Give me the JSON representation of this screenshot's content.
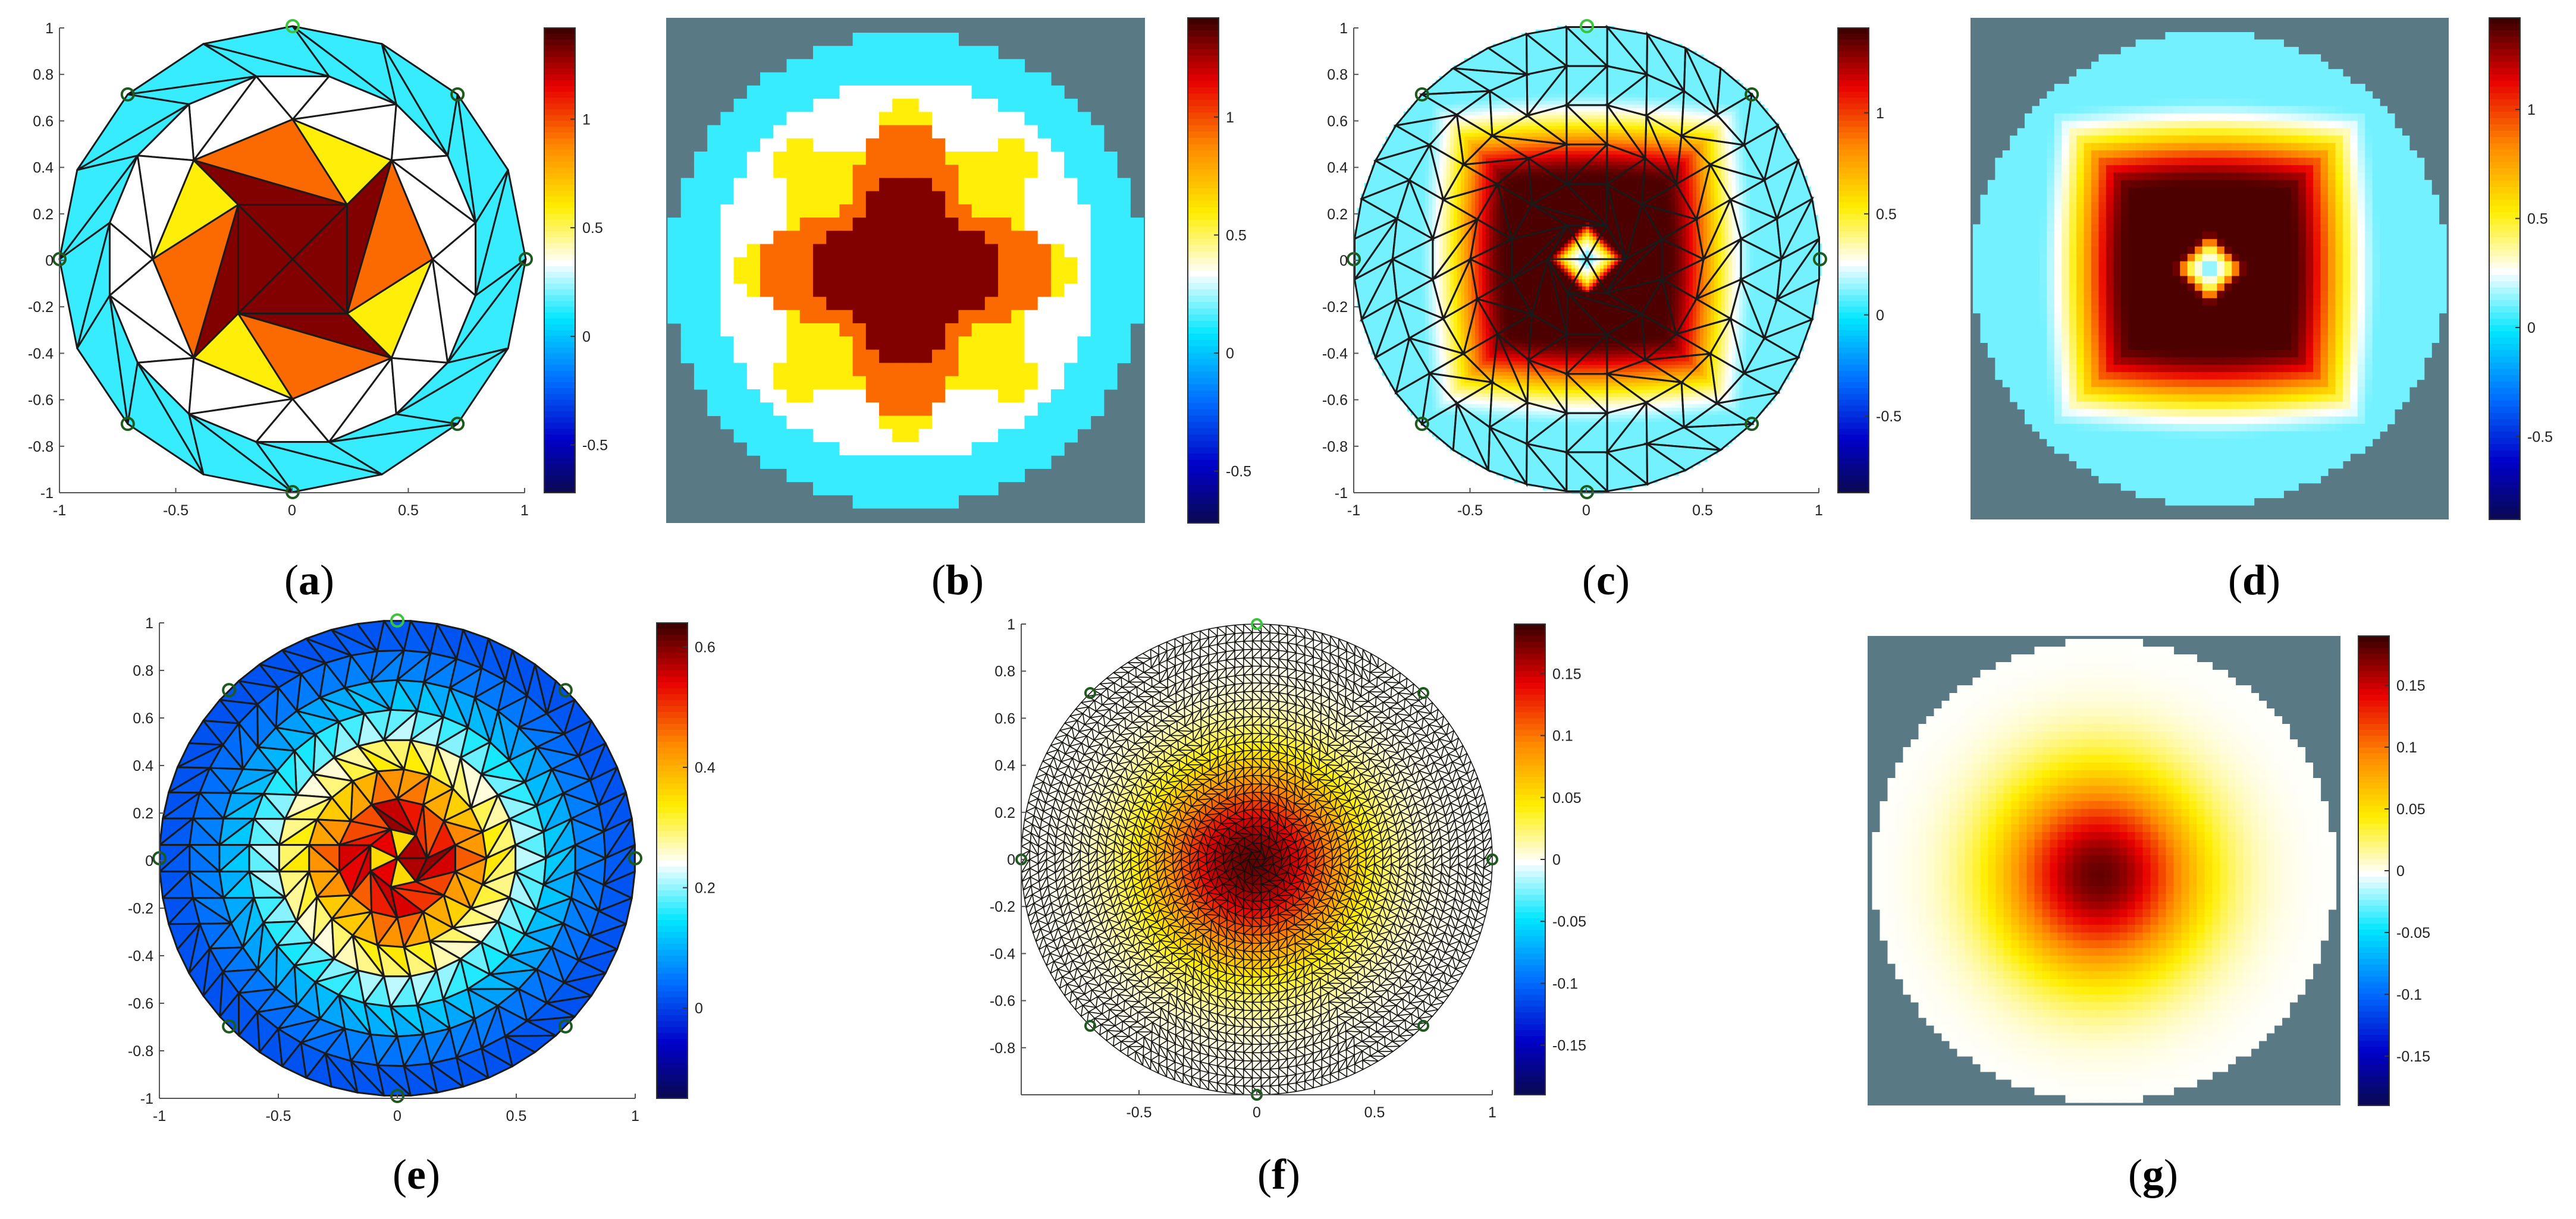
{
  "figure": {
    "description_labels": [
      "a",
      "b",
      "c",
      "d",
      "e",
      "f",
      "g"
    ]
  },
  "colors": {
    "background_gray": "#597a84",
    "mesh_line": "#1a1a1a",
    "electrode_dark": "#1e5a1e",
    "electrode_light": "#3cc43c"
  },
  "colormap": [
    [
      0.0,
      "#0a0a4a"
    ],
    [
      0.12,
      "#0000c8"
    ],
    [
      0.25,
      "#0070ff"
    ],
    [
      0.38,
      "#00e6ff"
    ],
    [
      0.5,
      "#ffffff"
    ],
    [
      0.62,
      "#ffee00"
    ],
    [
      0.75,
      "#ff8a00"
    ],
    [
      0.88,
      "#e80000"
    ],
    [
      1.0,
      "#400000"
    ]
  ],
  "chart_data": [
    {
      "id": "a",
      "label": "a",
      "type": "heatmap",
      "variant": "coarse-mesh",
      "xlim": [
        -1,
        1
      ],
      "ylim": [
        -1,
        1
      ],
      "xticks": [
        "-1",
        "-0.5",
        "0",
        "0.5",
        "1"
      ],
      "yticks": [
        "1",
        "0.8",
        "0.6",
        "0.4",
        "0.2",
        "0",
        "-0.2",
        "-0.4",
        "-0.6",
        "-0.8",
        "-1"
      ],
      "clim": [
        -0.72,
        1.42
      ],
      "colorbar_ticks": [
        "1",
        "0.5",
        "0",
        "-0.5"
      ],
      "electrodes": 8,
      "radial_values": [
        1.32,
        1.32,
        0.95,
        0.6,
        0.35,
        0.15
      ]
    },
    {
      "id": "b",
      "label": "b",
      "type": "heatmap",
      "variant": "pixel-image",
      "clim": [
        -0.72,
        1.42
      ],
      "colorbar_ticks": [
        "1",
        "0.5",
        "0",
        "-0.5"
      ],
      "radial_values": [
        1.32,
        1.32,
        0.95,
        0.6,
        0.35,
        0.15
      ]
    },
    {
      "id": "c",
      "label": "c",
      "type": "heatmap",
      "variant": "smooth-mesh",
      "xlim": [
        -1,
        1
      ],
      "ylim": [
        -1,
        1
      ],
      "xticks": [
        "-1",
        "-0.5",
        "0",
        "0.5",
        "1"
      ],
      "yticks": [
        "1",
        "0.8",
        "0.6",
        "0.4",
        "0.2",
        "0",
        "-0.2",
        "-0.4",
        "-0.6",
        "-0.8",
        "-1"
      ],
      "clim": [
        -0.88,
        1.42
      ],
      "colorbar_ticks": [
        "1",
        "0.5",
        "0",
        "-0.5"
      ],
      "electrodes": 8,
      "center_value": 0.0,
      "peak_value": 1.4
    },
    {
      "id": "d",
      "label": "d",
      "type": "heatmap",
      "variant": "pixel-image",
      "clim": [
        -0.88,
        1.42
      ],
      "colorbar_ticks": [
        "1",
        "0.5",
        "0",
        "-0.5"
      ],
      "center_value": 0.0,
      "peak_value": 1.4
    },
    {
      "id": "e",
      "label": "e",
      "type": "heatmap",
      "variant": "fine-mesh",
      "xlim": [
        -1,
        1
      ],
      "ylim": [
        -1,
        1
      ],
      "xticks": [
        "-1",
        "-0.5",
        "0",
        "0.5",
        "1"
      ],
      "yticks": [
        "1",
        "0.8",
        "0.6",
        "0.4",
        "0.2",
        "0",
        "-0.2",
        "-0.4",
        "-0.6",
        "-0.8",
        "-1"
      ],
      "clim": [
        -0.15,
        0.64
      ],
      "colorbar_ticks": [
        "0.6",
        "0.4",
        "0.2",
        "0"
      ],
      "electrodes": 8,
      "peak_value": 0.6,
      "edge_value": 0.02
    },
    {
      "id": "f",
      "label": "f",
      "type": "heatmap",
      "variant": "dense-mesh",
      "xlim": [
        -1,
        1
      ],
      "ylim": [
        -1,
        1
      ],
      "xticks": [
        "-0.5",
        "0",
        "0.5",
        "1"
      ],
      "yticks": [
        "1",
        "0.8",
        "0.6",
        "0.4",
        "0.2",
        "0",
        "-0.2",
        "-0.4",
        "-0.6",
        "-0.8"
      ],
      "clim": [
        -0.19,
        0.19
      ],
      "colorbar_ticks": [
        "0.15",
        "0.1",
        "0.05",
        "0",
        "-0.05",
        "-0.1",
        "-0.15"
      ],
      "electrodes": 8,
      "peak_value": 0.18,
      "edge_value": 0.0
    },
    {
      "id": "g",
      "label": "g",
      "type": "heatmap",
      "variant": "pixel-image",
      "clim": [
        -0.19,
        0.19
      ],
      "colorbar_ticks": [
        "0.15",
        "0.1",
        "0.05",
        "0",
        "-0.05",
        "-0.1",
        "-0.15"
      ],
      "peak_value": 0.18,
      "edge_value": 0.0
    }
  ]
}
